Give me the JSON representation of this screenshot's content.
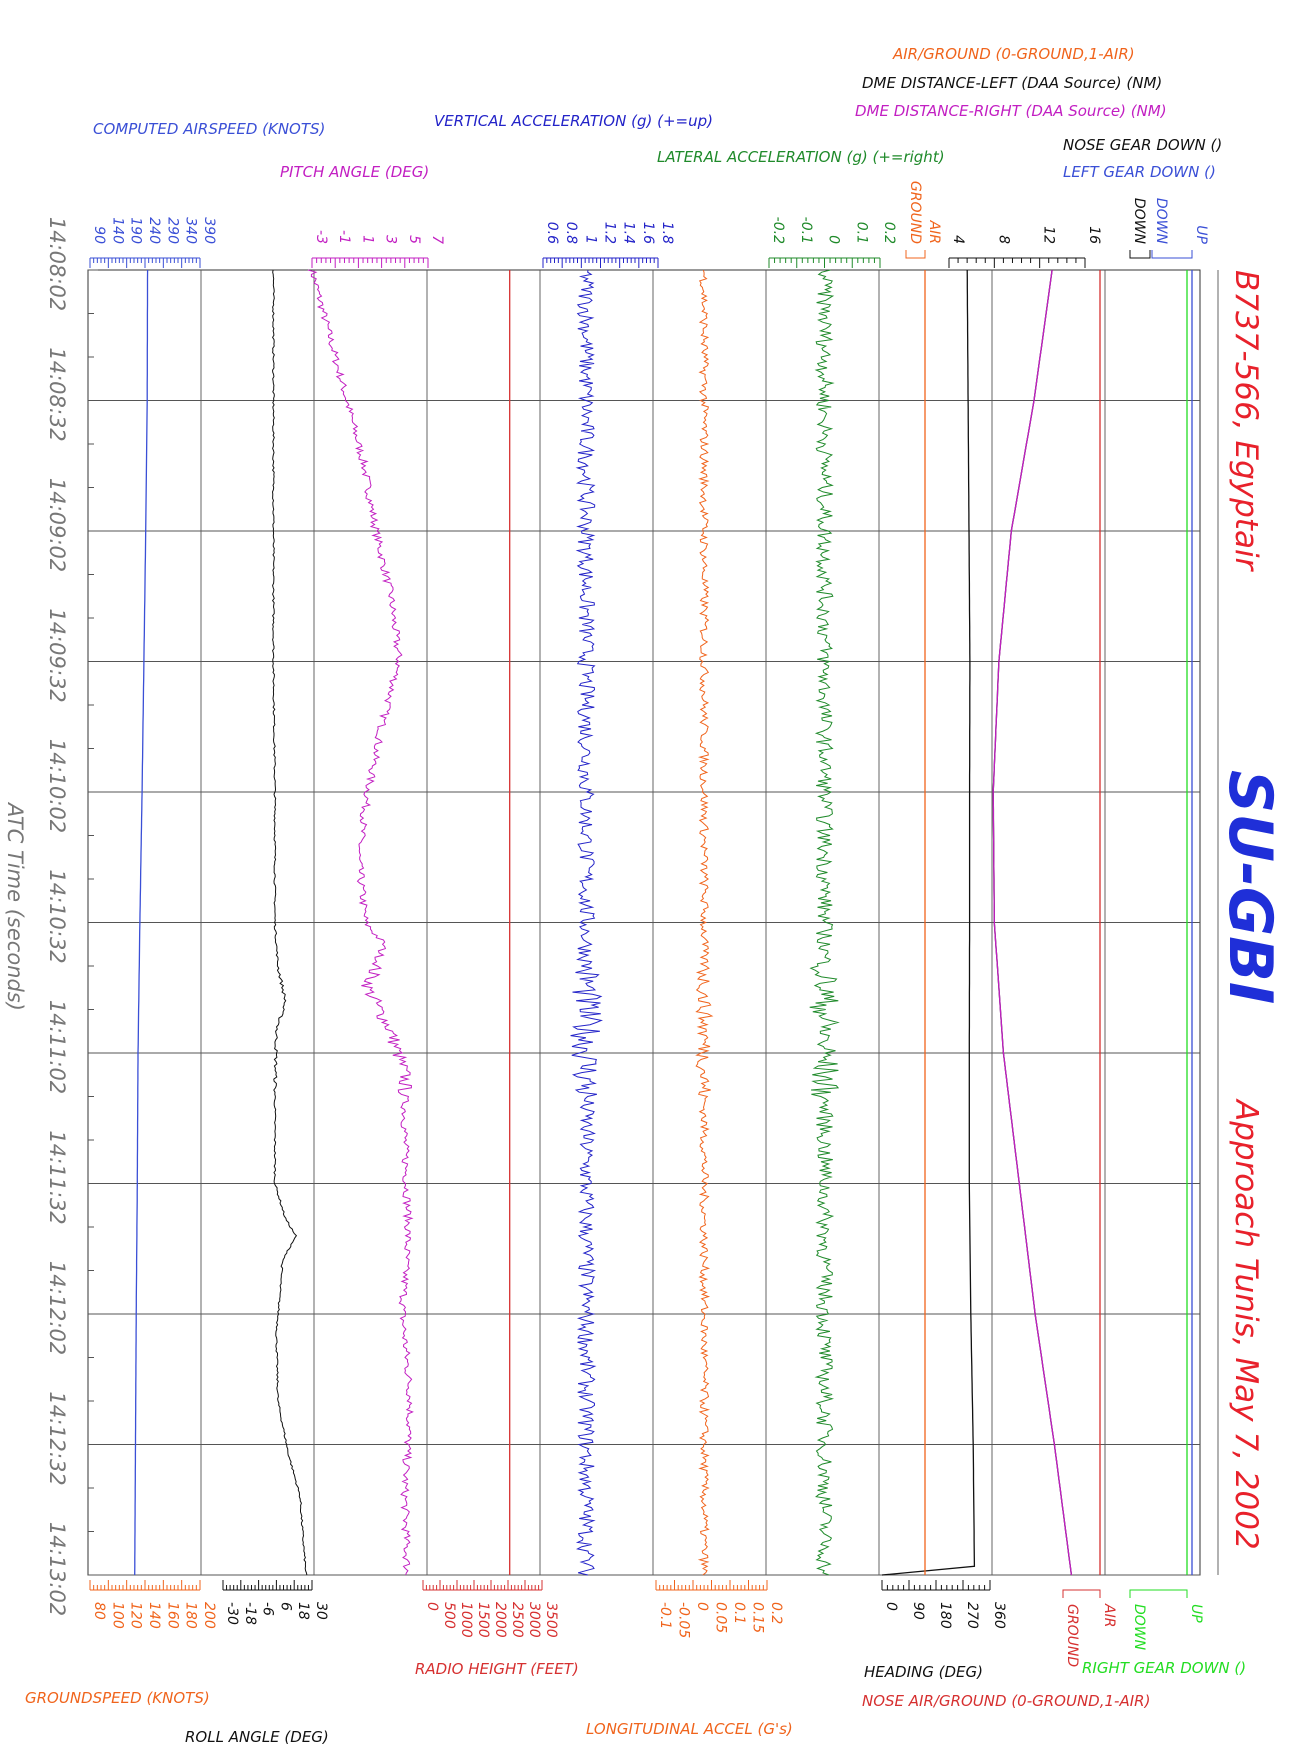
{
  "header": {
    "aircraft": "B737-566, Egyptair",
    "registration": "SU-GBI",
    "event": "Approach Tunis, May 7, 2002"
  },
  "chart_data": {
    "type": "line",
    "x_label": "ATC Time (seconds)",
    "x_ticks": [
      "14:08:02",
      "14:08:32",
      "14:09:02",
      "14:09:32",
      "14:10:02",
      "14:10:32",
      "14:11:02",
      "14:11:32",
      "14:12:02",
      "14:12:32",
      "14:13:02"
    ],
    "x_range": [
      "14:08:02",
      "14:13:02"
    ],
    "grid": true,
    "parameters": [
      {
        "key": "airspeed",
        "label": "COMPUTED AIRSPEED (KNOTS)",
        "color": "#3a4fd6",
        "axis": "top",
        "ticks": [
          "90",
          "140",
          "190",
          "240",
          "290",
          "340",
          "390"
        ],
        "range": [
          90,
          390
        ],
        "kind": "smooth",
        "values": [
          [
            0,
            247
          ],
          [
            30,
            246
          ],
          [
            60,
            242
          ],
          [
            90,
            237
          ],
          [
            120,
            232
          ],
          [
            150,
            226
          ],
          [
            180,
            221
          ],
          [
            210,
            219
          ],
          [
            240,
            216
          ],
          [
            270,
            214
          ],
          [
            300,
            212
          ]
        ]
      },
      {
        "key": "groundspeed",
        "label": "GROUNDSPEED (KNOTS)",
        "color": "#f0641c",
        "axis": "bottom",
        "ticks": [
          "80",
          "100",
          "120",
          "140",
          "160",
          "180",
          "200"
        ],
        "range": [
          80,
          200
        ],
        "kind": "none"
      },
      {
        "key": "pitch",
        "label": "PITCH ANGLE (DEG)",
        "color": "#c21fc2",
        "axis": "top",
        "ticks": [
          "-3",
          "-1",
          "1",
          "3",
          "5",
          "7"
        ],
        "range": [
          -3,
          7
        ],
        "kind": "noisy",
        "noise": 0.35,
        "values": [
          [
            0,
            -3
          ],
          [
            15,
            -1.5
          ],
          [
            30,
            0
          ],
          [
            45,
            1.5
          ],
          [
            60,
            2.5
          ],
          [
            75,
            3.8
          ],
          [
            90,
            4.5
          ],
          [
            105,
            3
          ],
          [
            120,
            1.8
          ],
          [
            135,
            1
          ],
          [
            150,
            1.6
          ],
          [
            155,
            3.2
          ],
          [
            165,
            1.8
          ],
          [
            175,
            3.8
          ],
          [
            185,
            5
          ],
          [
            200,
            5
          ],
          [
            220,
            5.3
          ],
          [
            240,
            4.8
          ],
          [
            260,
            5.5
          ],
          [
            280,
            5
          ],
          [
            300,
            5.2
          ]
        ]
      },
      {
        "key": "roll",
        "label": "ROLL ANGLE (DEG)",
        "color": "#111111",
        "axis": "bottom",
        "ticks": [
          "-30",
          "-18",
          "-6",
          "6",
          "18",
          "30"
        ],
        "range": [
          -30,
          30
        ],
        "kind": "noisy",
        "noise": 0.6,
        "values": [
          [
            0,
            4
          ],
          [
            30,
            4
          ],
          [
            60,
            4
          ],
          [
            90,
            4
          ],
          [
            120,
            5
          ],
          [
            150,
            5
          ],
          [
            160,
            7
          ],
          [
            168,
            12
          ],
          [
            175,
            6
          ],
          [
            190,
            5
          ],
          [
            210,
            5
          ],
          [
            218,
            12
          ],
          [
            222,
            19
          ],
          [
            228,
            10
          ],
          [
            245,
            6
          ],
          [
            260,
            7
          ],
          [
            272,
            14
          ],
          [
            282,
            22
          ],
          [
            292,
            24
          ],
          [
            300,
            26
          ]
        ]
      },
      {
        "key": "radio_height",
        "label": "RADIO HEIGHT (FEET)",
        "color": "#d63030",
        "axis": "bottom",
        "ticks": [
          "0",
          "500",
          "1000",
          "1500",
          "2000",
          "2500",
          "3000",
          "3500"
        ],
        "range": [
          0,
          3500
        ],
        "kind": "const",
        "values": [
          [
            0,
            2550
          ],
          [
            300,
            2550
          ]
        ]
      },
      {
        "key": "vert_accel",
        "label": "VERTICAL ACCELERATION (g) (+=up)",
        "color": "#2323c8",
        "axis": "top",
        "ticks": [
          "0.6",
          "0.8",
          "1",
          "1.2",
          "1.4",
          "1.6",
          "1.8"
        ],
        "range": [
          0.6,
          1.8
        ],
        "kind": "noisy",
        "noise": 0.09,
        "values": [
          [
            0,
            1.05
          ],
          [
            300,
            1.05
          ]
        ]
      },
      {
        "key": "long_accel",
        "label": "LONGITUDINAL ACCEL (G's)",
        "color": "#f0641c",
        "axis": "bottom",
        "ticks": [
          "-0.1",
          "-0.05",
          "0",
          "0.05",
          "0.1",
          "0.15",
          "0.2"
        ],
        "range": [
          -0.1,
          0.2
        ],
        "kind": "noisy",
        "noise": 0.012,
        "values": [
          [
            0,
            0.03
          ],
          [
            300,
            0.03
          ]
        ]
      },
      {
        "key": "lat_accel",
        "label": "LATERAL ACCELERATION (g) (+=right)",
        "color": "#1f8a2a",
        "axis": "top",
        "ticks": [
          "-0.2",
          "-0.1",
          "0",
          "0.1",
          "0.2"
        ],
        "range": [
          -0.2,
          0.2
        ],
        "kind": "noisy",
        "noise": 0.03,
        "values": [
          [
            0,
            0
          ],
          [
            300,
            0
          ]
        ]
      },
      {
        "key": "heading",
        "label": "HEADING (DEG)",
        "color": "#111111",
        "axis": "bottom",
        "ticks": [
          "0",
          "90",
          "180",
          "270",
          "360"
        ],
        "range": [
          0,
          360
        ],
        "kind": "smooth",
        "values": [
          [
            0,
            284
          ],
          [
            60,
            290
          ],
          [
            90,
            293
          ],
          [
            120,
            292
          ],
          [
            150,
            292
          ],
          [
            180,
            291
          ],
          [
            210,
            291
          ],
          [
            240,
            296
          ],
          [
            270,
            304
          ],
          [
            298,
            308
          ],
          [
            299,
            0
          ],
          [
            300,
            0
          ]
        ]
      },
      {
        "key": "air_ground_left",
        "label": "AIR/GROUND (0-GROUND,1-AIR)",
        "color": "#f0641c",
        "axis": "top",
        "ticks": [
          "GROUND",
          "AIR"
        ],
        "range": [
          0,
          1
        ],
        "kind": "const",
        "values": [
          [
            0,
            1
          ],
          [
            300,
            1
          ]
        ]
      },
      {
        "key": "dme_left",
        "label": "DME DISTANCE-LEFT (DAA Source) (NM)",
        "color": "#111111",
        "axis": "top",
        "ticks": [
          "4",
          "8",
          "12",
          "16"
        ],
        "range": [
          4,
          16
        ],
        "kind": "smooth",
        "values": [
          [
            0,
            13.1
          ],
          [
            30,
            11.5
          ],
          [
            60,
            9.5
          ],
          [
            90,
            8.4
          ],
          [
            120,
            7.9
          ],
          [
            150,
            8
          ],
          [
            180,
            8.8
          ],
          [
            210,
            10.2
          ],
          [
            240,
            11.6
          ],
          [
            270,
            13.3
          ],
          [
            300,
            14.8
          ]
        ]
      },
      {
        "key": "dme_right",
        "label": "DME DISTANCE-RIGHT (DAA Source) (NM)",
        "color": "#c21fc2",
        "axis": "top",
        "kind": "smooth",
        "values": [
          [
            0,
            13.1
          ],
          [
            30,
            11.5
          ],
          [
            60,
            9.5
          ],
          [
            90,
            8.4
          ],
          [
            120,
            7.9
          ],
          [
            150,
            8
          ],
          [
            180,
            8.8
          ],
          [
            210,
            10.2
          ],
          [
            240,
            11.6
          ],
          [
            270,
            13.3
          ],
          [
            300,
            14.8
          ]
        ]
      },
      {
        "key": "nose_ag",
        "label": "NOSE AIR/GROUND (0-GROUND,1-AIR)",
        "color": "#d63030",
        "axis": "bottom",
        "ticks": [
          "GROUND",
          "AIR"
        ],
        "range": [
          0,
          1
        ],
        "kind": "const",
        "values": [
          [
            0,
            1
          ],
          [
            300,
            1
          ]
        ]
      },
      {
        "key": "nose_gear",
        "label": "NOSE GEAR DOWN ()",
        "color": "#111111",
        "axis": "top",
        "ticks": [
          "DOWN"
        ],
        "kind": "none"
      },
      {
        "key": "left_gear",
        "label": "LEFT GEAR DOWN ()",
        "color": "#3a4fd6",
        "axis": "top",
        "ticks": [
          "DOWN",
          "UP"
        ],
        "range": [
          0,
          1
        ],
        "kind": "const",
        "values": [
          [
            0,
            1
          ],
          [
            300,
            1
          ]
        ]
      },
      {
        "key": "right_gear",
        "label": "RIGHT GEAR DOWN ()",
        "color": "#22dd22",
        "axis": "bottom",
        "ticks": [
          "DOWN",
          "UP"
        ],
        "range": [
          0,
          1
        ],
        "kind": "const",
        "values": [
          [
            0,
            1
          ],
          [
            300,
            1
          ]
        ]
      }
    ]
  }
}
